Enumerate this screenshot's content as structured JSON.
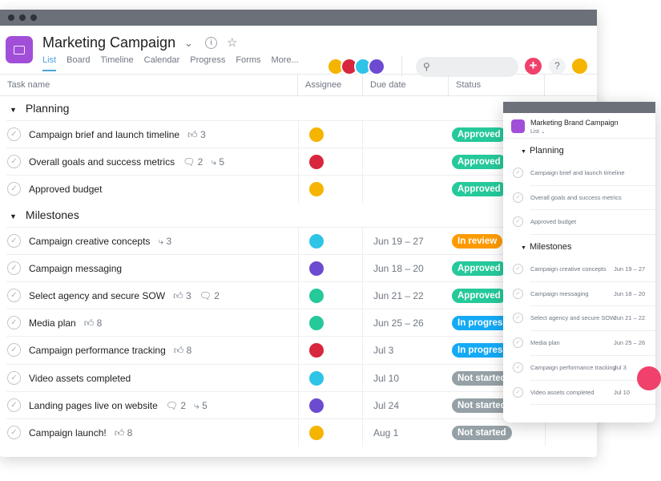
{
  "header": {
    "title": "Marketing Campaign",
    "tabs": [
      "List",
      "Board",
      "Timeline",
      "Calendar",
      "Progress",
      "Forms",
      "More..."
    ],
    "active_tab": "List",
    "members": [
      "#f5b400",
      "#d7263d",
      "#2ec4e6",
      "#6c4bd1"
    ],
    "add_label": "+",
    "help_label": "?"
  },
  "columns": [
    "Task name",
    "Assignee",
    "Due date",
    "Status"
  ],
  "status_colors": {
    "Approved": "#25c99a",
    "In review": "#fd9a00",
    "In progress": "#14aaf5",
    "Not started": "#95a1a6"
  },
  "sections": [
    {
      "name": "Planning",
      "tasks": [
        {
          "name": "Campaign brief and launch timeline",
          "likes": "3",
          "avatar": "#f5b400",
          "due": "",
          "status": "Approved"
        },
        {
          "name": "Overall goals and success metrics",
          "comments": "2",
          "subtasks": "5",
          "avatar": "#d7263d",
          "due": "",
          "status": "Approved"
        },
        {
          "name": "Approved budget",
          "avatar": "#f5b400",
          "due": "",
          "status": "Approved"
        }
      ]
    },
    {
      "name": "Milestones",
      "tasks": [
        {
          "name": "Campaign creative concepts",
          "subtasks": "3",
          "avatar": "#2ec4e6",
          "due": "Jun 19 – 27",
          "status": "In review"
        },
        {
          "name": "Campaign messaging",
          "avatar": "#6c4bd1",
          "due": "Jun 18 – 20",
          "status": "Approved"
        },
        {
          "name": "Select agency and secure SOW",
          "likes": "3",
          "comments": "2",
          "avatar": "#25c99a",
          "due": "Jun 21 – 22",
          "status": "Approved"
        },
        {
          "name": "Media plan",
          "likes": "8",
          "avatar": "#25c99a",
          "due": "Jun 25 – 26",
          "status": "In progress"
        },
        {
          "name": "Campaign performance tracking",
          "likes": "8",
          "avatar": "#d7263d",
          "due": "Jul 3",
          "status": "In progress"
        },
        {
          "name": "Video assets completed",
          "avatar": "#2ec4e6",
          "due": "Jul 10",
          "status": "Not started"
        },
        {
          "name": "Landing pages live on website",
          "comments": "2",
          "subtasks": "5",
          "avatar": "#6c4bd1",
          "due": "Jul 24",
          "status": "Not started"
        },
        {
          "name": "Campaign launch!",
          "likes": "8",
          "avatar": "#f5b400",
          "due": "Aug 1",
          "status": "Not started"
        }
      ]
    }
  ],
  "mobile": {
    "title": "Marketing Brand Campaign",
    "view": "List ⌄",
    "sections": [
      {
        "name": "Planning",
        "tasks": [
          {
            "name": "Campaign brief and launch timeline",
            "due": ""
          },
          {
            "name": "Overall goals and success metrics",
            "due": ""
          },
          {
            "name": "Approved budget",
            "due": ""
          }
        ]
      },
      {
        "name": "Milestones",
        "tasks": [
          {
            "name": "Campaign creative concepts",
            "due": "Jun 19 – 27"
          },
          {
            "name": "Campaign messaging",
            "due": "Jun 18 – 20"
          },
          {
            "name": "Select agency and secure SOW",
            "due": "Jun 21 – 22"
          },
          {
            "name": "Media plan",
            "due": "Jun 25 – 26"
          },
          {
            "name": "Campaign performance tracking",
            "due": "Jul 3"
          },
          {
            "name": "Video assets completed",
            "due": "Jul 10"
          }
        ]
      }
    ]
  }
}
